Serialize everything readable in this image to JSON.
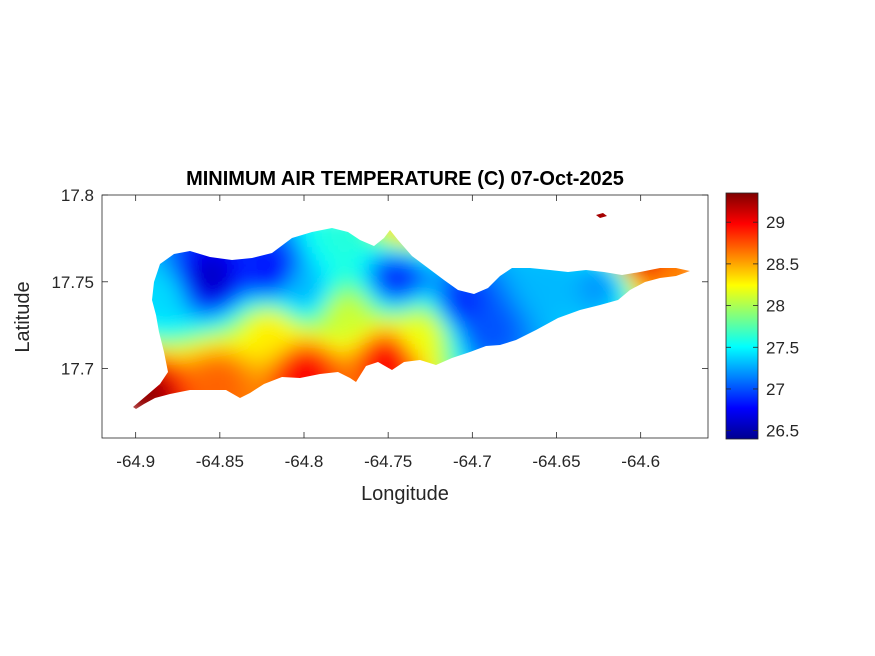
{
  "chart_data": {
    "type": "heatmap",
    "title": "MINIMUM AIR TEMPERATURE (C) 07-Oct-2025",
    "xlabel": "Longitude",
    "ylabel": "Latitude",
    "xlim": [
      -64.92,
      -64.56
    ],
    "ylim": [
      17.66,
      17.8
    ],
    "x_ticks": [
      -64.9,
      -64.85,
      -64.8,
      -64.75,
      -64.7,
      -64.65,
      -64.6
    ],
    "x_tick_labels": [
      "-64.9",
      "-64.85",
      "-64.8",
      "-64.75",
      "-64.7",
      "-64.65",
      "-64.6"
    ],
    "y_ticks": [
      17.7,
      17.75,
      17.8
    ],
    "y_tick_labels": [
      "17.7",
      "17.75",
      "17.8"
    ],
    "colorbar": {
      "colormap": "jet",
      "clim": [
        26.4,
        29.35
      ],
      "ticks": [
        26.5,
        27,
        27.5,
        28,
        28.5,
        29
      ],
      "tick_labels": [
        "26.5",
        "27",
        "27.5",
        "28",
        "28.5",
        "29"
      ]
    },
    "grid": false,
    "field_samples": [
      {
        "lon": -64.855,
        "lat": 17.752,
        "value": 26.6
      },
      {
        "lon": -64.82,
        "lat": 17.757,
        "value": 26.8
      },
      {
        "lon": -64.8,
        "lat": 17.745,
        "value": 27.3
      },
      {
        "lon": -64.78,
        "lat": 17.775,
        "value": 27.6
      },
      {
        "lon": -64.745,
        "lat": 17.752,
        "value": 26.9
      },
      {
        "lon": -64.705,
        "lat": 17.738,
        "value": 26.9
      },
      {
        "lon": -64.69,
        "lat": 17.722,
        "value": 27.0
      },
      {
        "lon": -64.655,
        "lat": 17.748,
        "value": 27.3
      },
      {
        "lon": -64.625,
        "lat": 17.748,
        "value": 27.2
      },
      {
        "lon": -64.58,
        "lat": 17.753,
        "value": 28.6
      },
      {
        "lon": -64.85,
        "lat": 17.692,
        "value": 28.7
      },
      {
        "lon": -64.8,
        "lat": 17.698,
        "value": 29.0
      },
      {
        "lon": -64.75,
        "lat": 17.705,
        "value": 29.0
      },
      {
        "lon": -64.895,
        "lat": 17.683,
        "value": 29.3
      },
      {
        "lon": -64.775,
        "lat": 17.73,
        "value": 28.1
      },
      {
        "lon": -64.82,
        "lat": 17.72,
        "value": 28.3
      },
      {
        "lon": -64.885,
        "lat": 17.74,
        "value": 27.4
      },
      {
        "lon": -64.6,
        "lat": 17.77,
        "value": 29.3
      },
      {
        "lon": -64.74,
        "lat": 17.785,
        "value": 28.4
      },
      {
        "lon": -64.73,
        "lat": 17.72,
        "value": 28.2
      }
    ]
  }
}
